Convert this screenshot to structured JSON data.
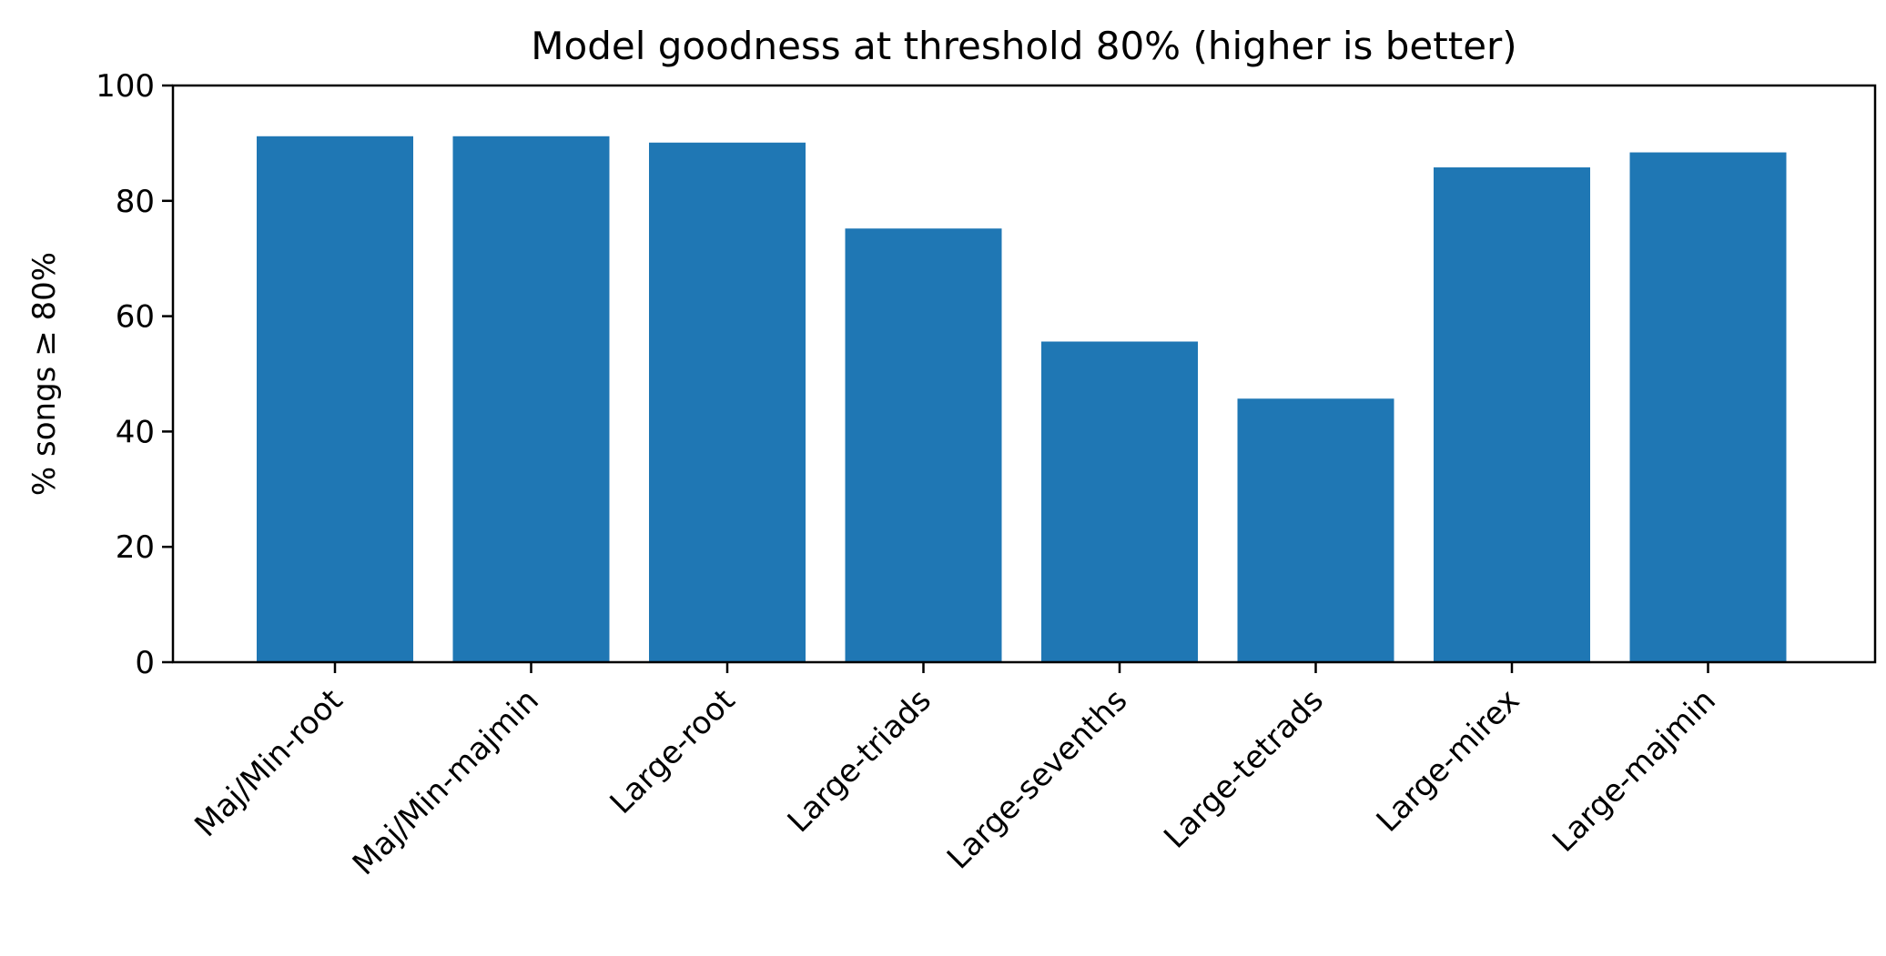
{
  "chart_data": {
    "type": "bar",
    "title": "Model goodness at threshold 80% (higher is better)",
    "xlabel": "",
    "ylabel": "% songs ≥ 80%",
    "categories": [
      "Maj/Min-root",
      "Maj/Min-majmin",
      "Large-root",
      "Large-triads",
      "Large-sevenths",
      "Large-tetrads",
      "Large-mirex",
      "Large-majmin"
    ],
    "values": [
      91.2,
      91.2,
      90.1,
      75.2,
      55.6,
      45.7,
      85.8,
      88.4
    ],
    "ylim": [
      0,
      100
    ],
    "yticks": [
      0,
      20,
      40,
      60,
      80,
      100
    ],
    "ytick_labels": [
      "0",
      "20",
      "40",
      "60",
      "80",
      "100"
    ],
    "grid": false,
    "bar_color": "#1f77b4"
  }
}
